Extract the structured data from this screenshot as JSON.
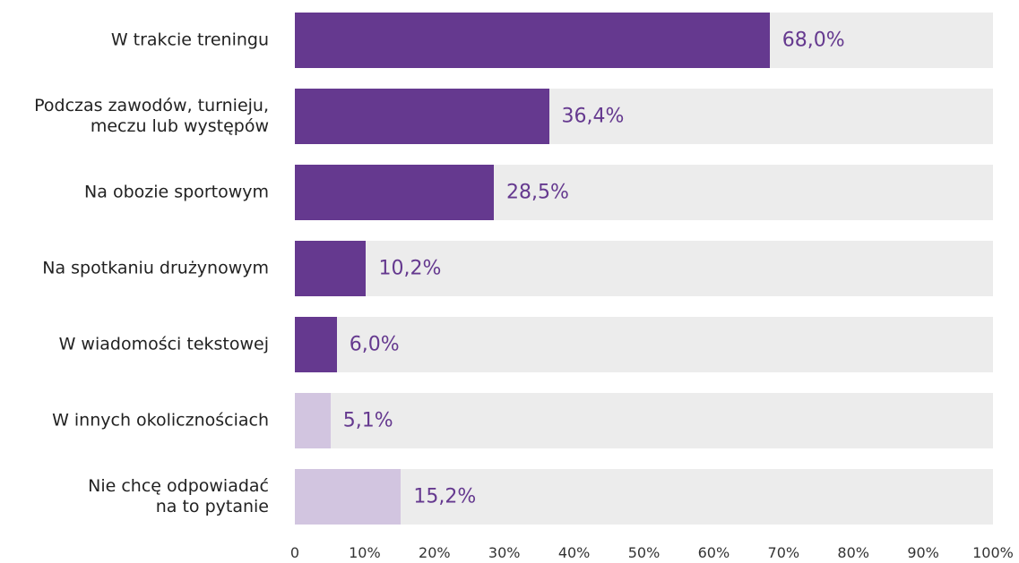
{
  "chart_data": {
    "type": "bar",
    "orientation": "horizontal",
    "categories": [
      "W trakcie treningu",
      "Podczas zawodów, turnieju,\nmeczu lub występów",
      "Na obozie sportowym",
      "Na spotkaniu drużynowym",
      "W wiadomości tekstowej",
      "W innych okolicznościach",
      "Nie chcę odpowiadać\nna to pytanie"
    ],
    "values": [
      68.0,
      36.4,
      28.5,
      10.2,
      6.0,
      5.1,
      15.2
    ],
    "value_labels": [
      "68,0%",
      "36,4%",
      "28,5%",
      "10,2%",
      "6,0%",
      "5,1%",
      "15,2%"
    ],
    "colors": [
      "#65398f",
      "#65398f",
      "#65398f",
      "#65398f",
      "#65398f",
      "#d2c5e0",
      "#d2c5e0"
    ],
    "track_color": "#ececec",
    "xlim": [
      0,
      100
    ],
    "xticks": [
      0,
      {
        "value": 10,
        "label": "10%"
      },
      {
        "value": 20,
        "label": "20%"
      },
      {
        "value": 30,
        "label": "30%"
      },
      {
        "value": 40,
        "label": "40%"
      },
      {
        "value": 50,
        "label": "50%"
      },
      {
        "value": 60,
        "label": "60%"
      },
      {
        "value": 70,
        "label": "70%"
      },
      {
        "value": 80,
        "label": "80%"
      },
      {
        "value": 90,
        "label": "90%"
      },
      {
        "value": 100,
        "label": "100%"
      }
    ]
  }
}
